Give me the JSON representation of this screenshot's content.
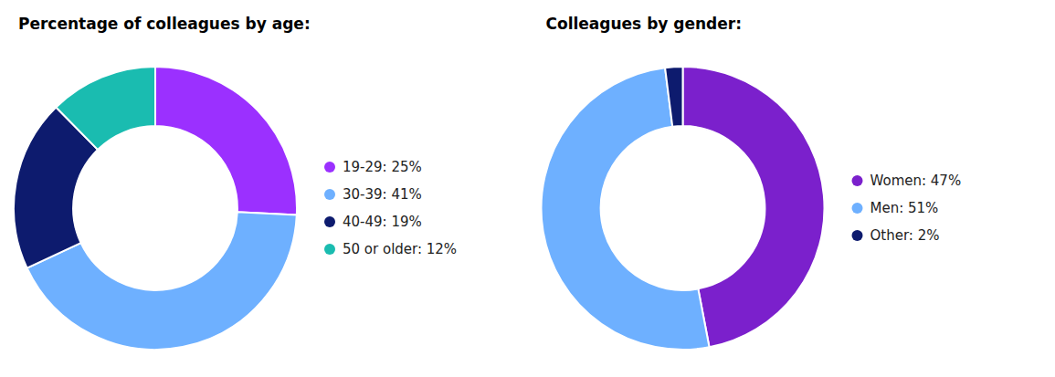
{
  "chart_data": [
    {
      "type": "donut",
      "title": "Percentage of colleagues by age:",
      "categories": [
        "19-29: 25%",
        "30-39: 41%",
        "40-49: 19%",
        "50 or older: 12%"
      ],
      "values": [
        25,
        41,
        19,
        12
      ],
      "colors": [
        "#9B30FF",
        "#6EB0FF",
        "#0D1B6E",
        "#1ABCB0"
      ],
      "legend": "right"
    },
    {
      "type": "donut",
      "title": "Colleagues by gender:",
      "categories": [
        "Women: 47%",
        "Men: 51%",
        "Other: 2%"
      ],
      "values": [
        47,
        51,
        2
      ],
      "colors": [
        "#7B20CC",
        "#6EB0FF",
        "#0D1B6E"
      ],
      "legend": "right"
    }
  ]
}
